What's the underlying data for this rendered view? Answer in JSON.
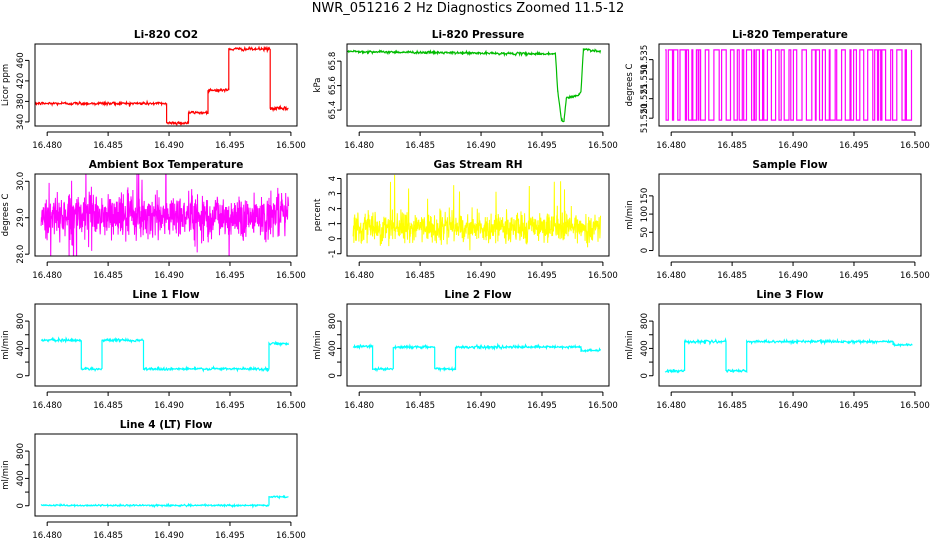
{
  "page": {
    "title": "NWR_051216  2 Hz Diagnostics Zoomed 11.5-12"
  },
  "chart_data": [
    {
      "id": "co2",
      "type": "line",
      "title": "Li-820 CO2",
      "ylabel": "Licor ppm",
      "color": "#ff0000",
      "xlim": [
        16.479,
        16.5005
      ],
      "ylim": [
        332,
        492
      ],
      "x_ticks": [
        16.48,
        16.485,
        16.49,
        16.495,
        16.5
      ],
      "x_tick_labels": [
        "16.480",
        "16.485",
        "16.490",
        "16.495",
        "16.500"
      ],
      "y_ticks": [
        340,
        380,
        420,
        460
      ],
      "y_tick_labels": [
        "340",
        "380",
        "420",
        "460"
      ],
      "noise": 1.5,
      "series": [
        {
          "name": "CO2",
          "x": [
            16.479,
            16.4898,
            16.4898,
            16.4916,
            16.4916,
            16.4932,
            16.4932,
            16.4949,
            16.4949,
            16.4983,
            16.4983,
            16.4998
          ],
          "y": [
            376,
            376,
            338,
            338,
            358,
            358,
            402,
            402,
            482,
            482,
            366,
            366
          ]
        }
      ]
    },
    {
      "id": "pressure",
      "type": "line",
      "title": "Li-820 Pressure",
      "ylabel": "kPa",
      "color": "#00bb00",
      "xlim": [
        16.479,
        16.5005
      ],
      "ylim": [
        65.27,
        65.94
      ],
      "x_ticks": [
        16.48,
        16.485,
        16.49,
        16.495,
        16.5
      ],
      "x_tick_labels": [
        "16.480",
        "16.485",
        "16.490",
        "16.495",
        "16.500"
      ],
      "y_ticks": [
        65.4,
        65.6,
        65.8
      ],
      "y_tick_labels": [
        "65.4",
        "65.6",
        "65.8"
      ],
      "noise": 0.005,
      "series": [
        {
          "name": "Pressure",
          "x": [
            16.479,
            16.482,
            16.486,
            16.49,
            16.494,
            16.4961,
            16.4963,
            16.4966,
            16.4968,
            16.497,
            16.498,
            16.4982,
            16.4984,
            16.499,
            16.4998
          ],
          "y": [
            65.88,
            65.875,
            65.87,
            65.865,
            65.86,
            65.86,
            65.55,
            65.32,
            65.3,
            65.5,
            65.52,
            65.55,
            65.9,
            65.89,
            65.88
          ]
        }
      ]
    },
    {
      "id": "licor_temp",
      "type": "line",
      "title": "Li-820 Temperature",
      "ylabel": "degrees C",
      "color": "#ff00ff",
      "xlim": [
        16.479,
        16.5005
      ],
      "ylim": [
        51.518,
        51.539
      ],
      "x_ticks": [
        16.48,
        16.485,
        16.49,
        16.495,
        16.5
      ],
      "x_tick_labels": [
        "16.480",
        "16.485",
        "16.490",
        "16.495",
        "16.500"
      ],
      "y_ticks": [
        51.52,
        51.525,
        51.53,
        51.535
      ],
      "y_tick_labels": [
        "51.520",
        "51.525",
        "51.530",
        "51.535"
      ],
      "pattern": "switching",
      "levels": [
        51.5195,
        51.5375
      ],
      "series": [
        {
          "name": "Temperature",
          "x_range": [
            16.4795,
            16.4997
          ]
        }
      ]
    },
    {
      "id": "box_temp",
      "type": "line",
      "title": "Ambient Box Temperature",
      "ylabel": "degrees C",
      "color": "#ff00ff",
      "xlim": [
        16.479,
        16.5005
      ],
      "ylim": [
        27.95,
        30.2
      ],
      "x_ticks": [
        16.48,
        16.485,
        16.49,
        16.495,
        16.5
      ],
      "x_tick_labels": [
        "16.480",
        "16.485",
        "16.490",
        "16.495",
        "16.500"
      ],
      "y_ticks": [
        28.0,
        29.0,
        30.0
      ],
      "y_tick_labels": [
        "28.0",
        "29.0",
        "30.0"
      ],
      "pattern": "noise",
      "mean": 29.05,
      "sd": 0.32,
      "series": [
        {
          "name": "Box Temperature",
          "x_range": [
            16.4795,
            16.4998
          ]
        }
      ]
    },
    {
      "id": "rh",
      "type": "line",
      "title": "Gas Stream RH",
      "ylabel": "percent",
      "color": "#ffff00",
      "xlim": [
        16.479,
        16.5005
      ],
      "ylim": [
        -1.15,
        4.3
      ],
      "x_ticks": [
        16.48,
        16.485,
        16.49,
        16.495,
        16.5
      ],
      "x_tick_labels": [
        "16.480",
        "16.485",
        "16.490",
        "16.495",
        "16.500"
      ],
      "y_ticks": [
        -1,
        0,
        1,
        2,
        3,
        4
      ],
      "y_tick_labels": [
        "-1",
        "0",
        "1",
        "2",
        "3",
        "4"
      ],
      "pattern": "noise",
      "mean": 0.75,
      "sd": 0.5,
      "series": [
        {
          "name": "RH",
          "x_range": [
            16.4795,
            16.4998
          ]
        }
      ]
    },
    {
      "id": "sample_flow",
      "type": "line",
      "title": "Sample Flow",
      "ylabel": "ml/min",
      "color": "#00ffff",
      "xlim": [
        16.479,
        16.5005
      ],
      "ylim": [
        -15,
        210
      ],
      "x_ticks": [
        16.48,
        16.485,
        16.49,
        16.495,
        16.5
      ],
      "x_tick_labels": [
        "16.480",
        "16.485",
        "16.490",
        "16.495",
        "16.500"
      ],
      "y_ticks": [
        0,
        50,
        100,
        150
      ],
      "y_tick_labels": [
        "0",
        "50",
        "100",
        "150"
      ],
      "series": []
    },
    {
      "id": "line1",
      "type": "line",
      "title": "Line 1 Flow",
      "ylabel": "ml/min",
      "color": "#00ffff",
      "xlim": [
        16.479,
        16.5005
      ],
      "ylim": [
        -150,
        1050
      ],
      "x_ticks": [
        16.48,
        16.485,
        16.49,
        16.495,
        16.5
      ],
      "x_tick_labels": [
        "16.480",
        "16.485",
        "16.490",
        "16.495",
        "16.500"
      ],
      "y_ticks": [
        0,
        200,
        400,
        600,
        800
      ],
      "y_tick_labels": [
        "0",
        "",
        "400",
        "",
        "800"
      ],
      "noise": 10,
      "series": [
        {
          "name": "Line 1",
          "x": [
            16.4795,
            16.4828,
            16.4828,
            16.4845,
            16.4845,
            16.4879,
            16.4879,
            16.4895,
            16.4982,
            16.4982,
            16.4998
          ],
          "y": [
            520,
            520,
            100,
            100,
            520,
            520,
            100,
            100,
            100,
            470,
            470
          ]
        }
      ]
    },
    {
      "id": "line2",
      "type": "line",
      "title": "Line 2 Flow",
      "ylabel": "ml/min",
      "color": "#00ffff",
      "xlim": [
        16.479,
        16.5005
      ],
      "ylim": [
        -150,
        1050
      ],
      "x_ticks": [
        16.48,
        16.485,
        16.49,
        16.495,
        16.5
      ],
      "x_tick_labels": [
        "16.480",
        "16.485",
        "16.490",
        "16.495",
        "16.500"
      ],
      "y_ticks": [
        0,
        200,
        400,
        600,
        800
      ],
      "y_tick_labels": [
        "0",
        "",
        "400",
        "",
        "800"
      ],
      "noise": 10,
      "series": [
        {
          "name": "Line 2",
          "x": [
            16.4795,
            16.4811,
            16.4811,
            16.4828,
            16.4828,
            16.4862,
            16.4862,
            16.4879,
            16.4879,
            16.4982,
            16.4982,
            16.4998
          ],
          "y": [
            430,
            430,
            100,
            100,
            420,
            420,
            100,
            100,
            420,
            420,
            370,
            370
          ]
        }
      ]
    },
    {
      "id": "line3",
      "type": "line",
      "title": "Line 3 Flow",
      "ylabel": "ml/min",
      "color": "#00ffff",
      "xlim": [
        16.479,
        16.5005
      ],
      "ylim": [
        -150,
        1050
      ],
      "x_ticks": [
        16.48,
        16.485,
        16.49,
        16.495,
        16.5
      ],
      "x_tick_labels": [
        "16.480",
        "16.485",
        "16.490",
        "16.495",
        "16.500"
      ],
      "y_ticks": [
        0,
        200,
        400,
        600,
        800
      ],
      "y_tick_labels": [
        "0",
        "",
        "400",
        "",
        "800"
      ],
      "noise": 10,
      "series": [
        {
          "name": "Line 3",
          "x": [
            16.4795,
            16.4811,
            16.4811,
            16.4845,
            16.4845,
            16.4862,
            16.4862,
            16.4982,
            16.4982,
            16.4998
          ],
          "y": [
            70,
            70,
            500,
            500,
            70,
            70,
            500,
            500,
            450,
            450
          ]
        }
      ]
    },
    {
      "id": "line4",
      "type": "line",
      "title": "Line 4 (LT) Flow",
      "ylabel": "ml/min",
      "color": "#00ffff",
      "xlim": [
        16.479,
        16.5005
      ],
      "ylim": [
        -150,
        1050
      ],
      "x_ticks": [
        16.48,
        16.485,
        16.49,
        16.495,
        16.5
      ],
      "x_tick_labels": [
        "16.480",
        "16.485",
        "16.490",
        "16.495",
        "16.500"
      ],
      "y_ticks": [
        0,
        200,
        400,
        600,
        800
      ],
      "y_tick_labels": [
        "0",
        "",
        "400",
        "",
        "800"
      ],
      "noise": 6,
      "series": [
        {
          "name": "Line 4",
          "x": [
            16.4795,
            16.4982,
            16.4982,
            16.4998
          ],
          "y": [
            5,
            5,
            130,
            130
          ]
        }
      ]
    }
  ]
}
